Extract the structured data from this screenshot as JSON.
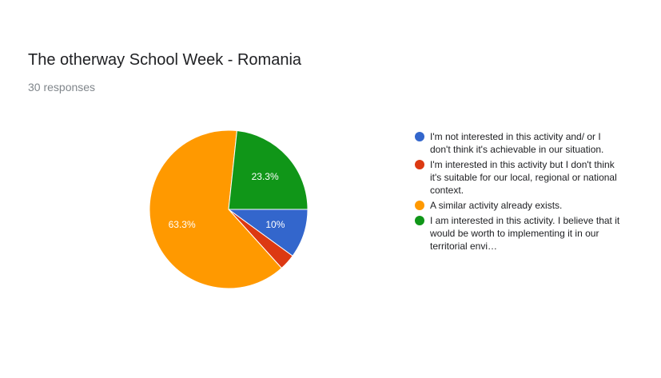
{
  "header": {
    "title": "The otherway School Week - Romania",
    "responses": "30 responses"
  },
  "chart_data": {
    "type": "pie",
    "title": "The otherway School Week - Romania",
    "legend_position": "right",
    "slices": [
      {
        "label": "I'm not interested in this activity and/ or I don't think it's achievable in our situation.",
        "value": 10.0,
        "data_label": "10%",
        "color": "#3366cc"
      },
      {
        "label": "I'm interested in this activity but I don't think it's suitable for our local, regional or national context.",
        "value": 3.3,
        "data_label": "",
        "color": "#dc3912"
      },
      {
        "label": "A similar activity already exists.",
        "value": 63.3,
        "data_label": "63.3%",
        "color": "#ff9900"
      },
      {
        "label": "I am interested in this activity. I believe that it would be worth to implementing it in our territorial envi…",
        "value": 23.3,
        "data_label": "23.3%",
        "color": "#109618"
      }
    ]
  }
}
